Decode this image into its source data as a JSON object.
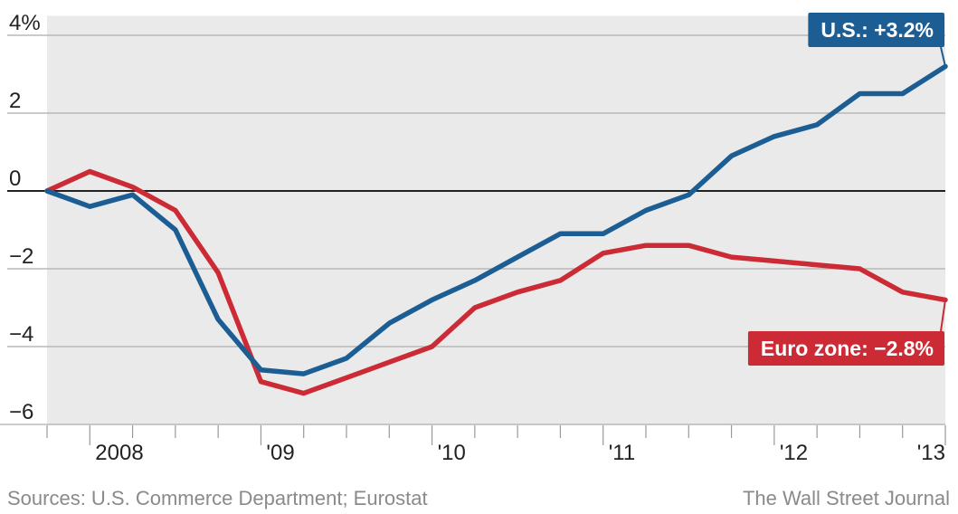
{
  "chart_data": {
    "type": "line",
    "title": "",
    "xlabel": "",
    "ylabel": "",
    "y_unit_label": "4%",
    "ylim": [
      -6,
      4.5
    ],
    "yticks": [
      4,
      2,
      0,
      -2,
      -4,
      -6
    ],
    "ytick_labels": [
      "4%",
      "2",
      "0",
      "−2",
      "−4",
      "−6"
    ],
    "x_range": [
      "2008-01",
      "2013-04"
    ],
    "xtick_labels": [
      {
        "label": "2008",
        "at": "2008-04"
      },
      {
        "label": "'09",
        "at": "2009-04"
      },
      {
        "label": "'10",
        "at": "2010-04"
      },
      {
        "label": "'11",
        "at": "2011-04"
      },
      {
        "label": "'12",
        "at": "2012-04"
      },
      {
        "label": "'13",
        "at": "2013-04"
      }
    ],
    "grid": "horizontal",
    "plot_background": "#eaeaea",
    "series": [
      {
        "name": "U.S.",
        "color": "#1c5e94",
        "callout": "U.S.: +3.2%",
        "callout_anchor": "top-right",
        "points": [
          [
            "2008-01",
            0.0
          ],
          [
            "2008-04",
            -0.4
          ],
          [
            "2008-07",
            -0.1
          ],
          [
            "2008-10",
            -1.0
          ],
          [
            "2009-01",
            -3.3
          ],
          [
            "2009-04",
            -4.6
          ],
          [
            "2009-07",
            -4.7
          ],
          [
            "2009-10",
            -4.3
          ],
          [
            "2010-01",
            -3.4
          ],
          [
            "2010-04",
            -2.8
          ],
          [
            "2010-07",
            -2.3
          ],
          [
            "2010-10",
            -1.7
          ],
          [
            "2011-01",
            -1.1
          ],
          [
            "2011-04",
            -1.1
          ],
          [
            "2011-07",
            -0.5
          ],
          [
            "2011-10",
            -0.1
          ],
          [
            "2012-01",
            0.9
          ],
          [
            "2012-04",
            1.4
          ],
          [
            "2012-07",
            1.7
          ],
          [
            "2012-10",
            2.5
          ],
          [
            "2013-01",
            2.5
          ],
          [
            "2013-04",
            3.2
          ]
        ]
      },
      {
        "name": "Euro zone",
        "color": "#cc2b36",
        "callout": "Euro zone: −2.8%",
        "callout_anchor": "bottom-right",
        "points": [
          [
            "2008-01",
            0.0
          ],
          [
            "2008-04",
            0.5
          ],
          [
            "2008-07",
            0.1
          ],
          [
            "2008-10",
            -0.5
          ],
          [
            "2009-01",
            -2.1
          ],
          [
            "2009-04",
            -4.9
          ],
          [
            "2009-07",
            -5.2
          ],
          [
            "2009-10",
            -4.8
          ],
          [
            "2010-01",
            -4.4
          ],
          [
            "2010-04",
            -4.0
          ],
          [
            "2010-07",
            -3.0
          ],
          [
            "2010-10",
            -2.6
          ],
          [
            "2011-01",
            -2.3
          ],
          [
            "2011-04",
            -1.6
          ],
          [
            "2011-07",
            -1.4
          ],
          [
            "2011-10",
            -1.4
          ],
          [
            "2012-01",
            -1.7
          ],
          [
            "2012-04",
            -1.8
          ],
          [
            "2012-07",
            -1.9
          ],
          [
            "2012-10",
            -2.0
          ],
          [
            "2013-01",
            -2.6
          ],
          [
            "2013-04",
            -2.8
          ]
        ]
      }
    ]
  },
  "footer": {
    "source": "Sources: U.S. Commerce Department; Eurostat",
    "credit": "The Wall Street Journal"
  }
}
